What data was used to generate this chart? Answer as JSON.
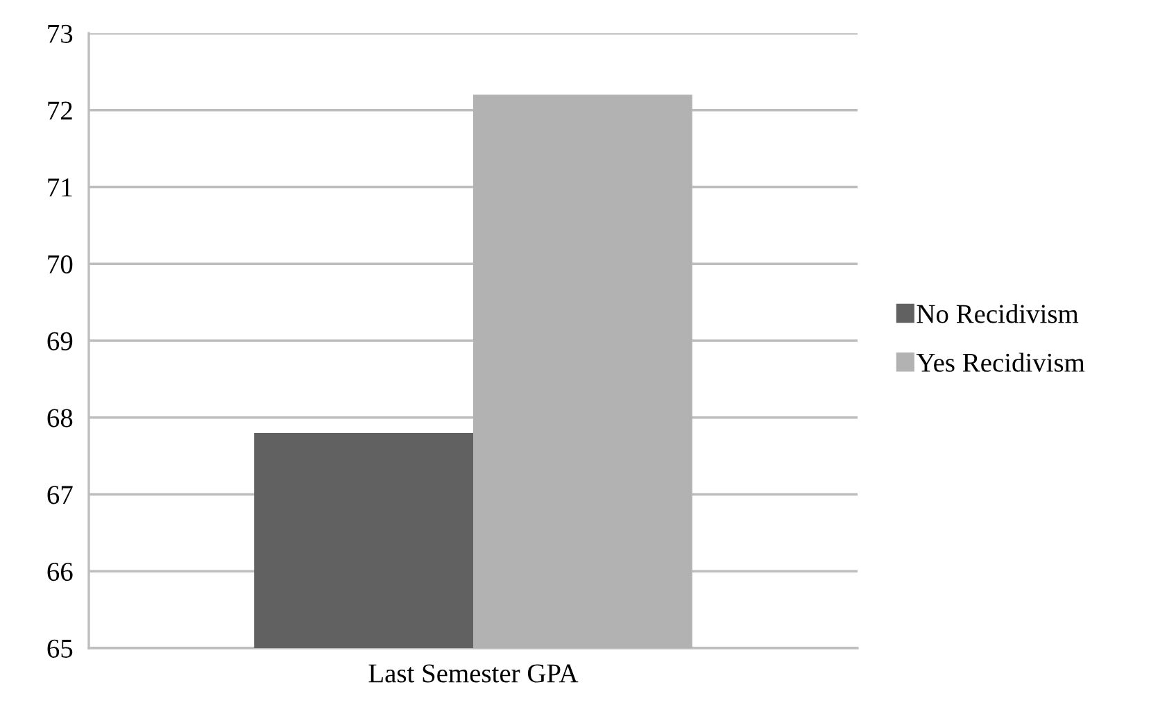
{
  "chart_data": {
    "type": "bar",
    "categories": [
      "Last Semester GPA"
    ],
    "series": [
      {
        "name": "No Recidivism",
        "color": "#616161",
        "values": [
          67.8
        ]
      },
      {
        "name": "Yes Recidivism",
        "color": "#b2b2b2",
        "values": [
          72.2
        ]
      }
    ],
    "ylim": [
      65,
      73
    ],
    "yticks": [
      65,
      66,
      67,
      68,
      69,
      70,
      71,
      72,
      73
    ],
    "grid": "y",
    "legend": "right"
  }
}
